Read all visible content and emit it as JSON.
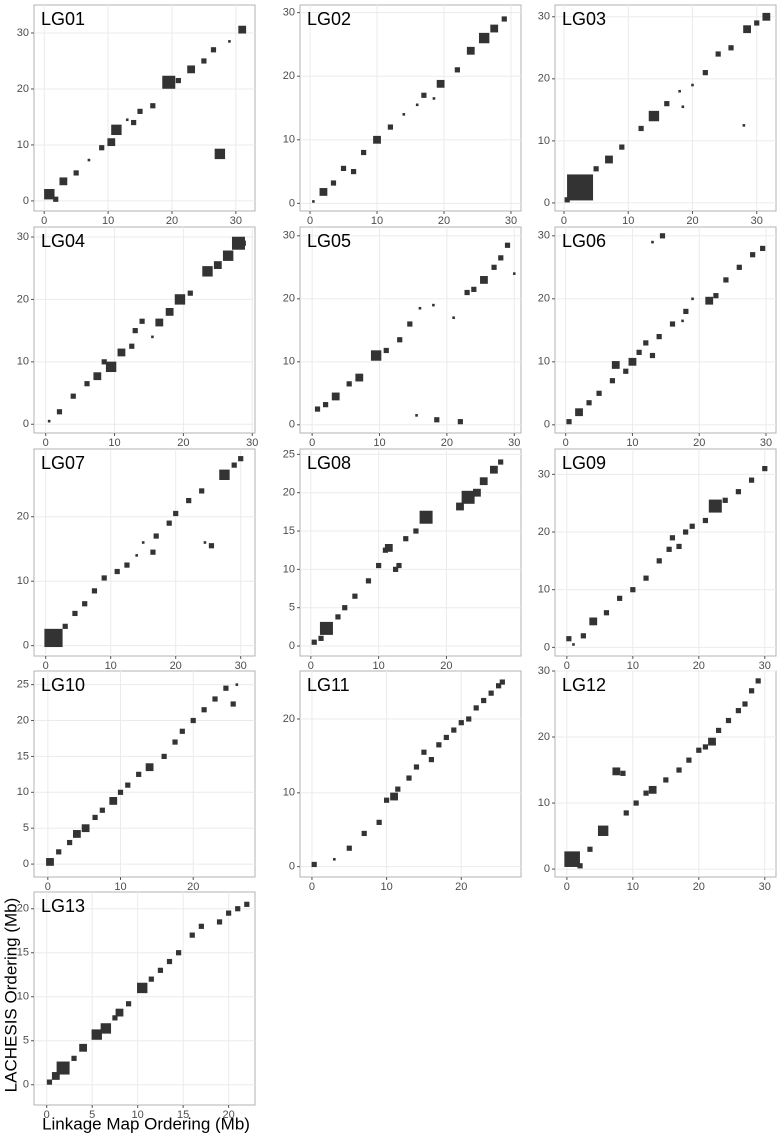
{
  "axis_labels": {
    "x": "Linkage Map Ordering (Mb)",
    "y": "LACHESIS Ordering (Mb)"
  },
  "chart_data": [
    {
      "type": "scatter",
      "title": "LG01",
      "color": "#333333",
      "grid": true,
      "xlim": [
        -1.6,
        33
      ],
      "ylim": [
        -1.8,
        35
      ],
      "xticks": [
        0,
        10,
        20,
        30
      ],
      "yticks": [
        0,
        10,
        20,
        30
      ],
      "x": [
        0.8,
        1.8,
        3,
        5,
        7,
        9,
        10.5,
        11.3,
        13,
        14,
        15,
        17,
        19.5,
        21,
        23,
        25,
        26.5,
        27.5,
        29,
        31
      ],
      "values": [
        1.2,
        0.3,
        3.5,
        5,
        7.3,
        9.5,
        10.5,
        12.7,
        14.5,
        14,
        16,
        17,
        21.2,
        21.5,
        23.5,
        25,
        27,
        8.4,
        28.5,
        30.6
      ],
      "sizes": [
        4,
        2,
        3,
        2,
        1,
        2,
        3,
        4,
        1,
        2,
        2,
        2,
        5,
        2,
        3,
        2,
        2,
        4,
        1,
        3
      ]
    },
    {
      "type": "scatter",
      "title": "LG02",
      "color": "#333333",
      "grid": true,
      "xlim": [
        -1.5,
        31.5
      ],
      "ylim": [
        -1.2,
        31.2
      ],
      "xticks": [
        0,
        10,
        20,
        30
      ],
      "yticks": [
        0,
        10,
        20,
        30
      ],
      "x": [
        0.5,
        2,
        3.5,
        5,
        6.5,
        8,
        10,
        12,
        14,
        16,
        17,
        18.5,
        19.5,
        22,
        24,
        26,
        27.5,
        29
      ],
      "values": [
        0.3,
        1.8,
        3.2,
        5.5,
        5,
        8,
        10,
        12,
        14,
        15.5,
        17,
        16.5,
        18.8,
        21,
        24,
        26,
        27.5,
        29
      ],
      "sizes": [
        1,
        3,
        2,
        2,
        2,
        2,
        3,
        2,
        1,
        1,
        2,
        1,
        3,
        2,
        3,
        4,
        3,
        2
      ]
    },
    {
      "type": "scatter",
      "title": "LG03",
      "color": "#333333",
      "grid": true,
      "xlim": [
        -1.4,
        33
      ],
      "ylim": [
        -1.3,
        31.9
      ],
      "xticks": [
        0,
        10,
        20,
        30
      ],
      "yticks": [
        0,
        10,
        20,
        30
      ],
      "x": [
        0.5,
        2.5,
        5,
        7,
        9,
        12,
        14,
        16,
        18,
        18.5,
        20,
        22,
        24,
        26,
        28,
        28.5,
        30,
        31.5
      ],
      "values": [
        0.5,
        2.5,
        5.5,
        7,
        9,
        12,
        14,
        16,
        18,
        15.5,
        19,
        21,
        24,
        25,
        12.5,
        28,
        29,
        30
      ],
      "sizes": [
        2,
        10,
        2,
        3,
        2,
        2,
        4,
        2,
        1,
        1,
        1,
        2,
        2,
        2,
        1,
        3,
        2,
        3
      ]
    },
    {
      "type": "scatter",
      "title": "LG04",
      "color": "#333333",
      "grid": true,
      "xlim": [
        -1.7,
        30.4
      ],
      "ylim": [
        -1.4,
        31.6
      ],
      "xticks": [
        0,
        10,
        20,
        30
      ],
      "yticks": [
        0,
        10,
        20,
        30
      ],
      "x": [
        0.5,
        2,
        4,
        6,
        7.5,
        8.5,
        9.5,
        11,
        12.5,
        13,
        14,
        15.5,
        16.5,
        18,
        19.5,
        21,
        23.5,
        25,
        26.5,
        28,
        28.7
      ],
      "values": [
        0.5,
        2,
        4.5,
        6.5,
        7.7,
        10,
        9.2,
        11.5,
        12.5,
        15,
        16.5,
        14,
        16.3,
        18,
        20,
        21,
        24.5,
        25.5,
        27,
        29,
        29
      ],
      "sizes": [
        1,
        2,
        2,
        2,
        3,
        2,
        4,
        3,
        2,
        2,
        2,
        1,
        3,
        3,
        4,
        2,
        4,
        3,
        4,
        5,
        2
      ]
    },
    {
      "type": "scatter",
      "title": "LG05",
      "color": "#333333",
      "grid": true,
      "xlim": [
        -1.8,
        31
      ],
      "ylim": [
        -1.3,
        31.4
      ],
      "xticks": [
        0,
        10,
        20,
        30
      ],
      "yticks": [
        0,
        10,
        20,
        30
      ],
      "x": [
        0.8,
        2,
        3.5,
        5.5,
        7,
        9.5,
        11,
        13,
        14.5,
        16,
        18,
        15.5,
        18.5,
        22,
        21,
        23,
        24,
        25.5,
        27,
        28,
        29,
        30
      ],
      "values": [
        2.5,
        3.2,
        4.5,
        6.5,
        7.5,
        11,
        11.8,
        13.5,
        16,
        18.5,
        19,
        1.5,
        0.8,
        0.5,
        17,
        21,
        21.5,
        23,
        25,
        26.5,
        28.5,
        24
      ],
      "sizes": [
        2,
        2,
        3,
        2,
        3,
        4,
        2,
        2,
        2,
        1,
        1,
        1,
        2,
        2,
        1,
        2,
        2,
        3,
        2,
        2,
        2,
        1
      ]
    },
    {
      "type": "scatter",
      "title": "LG06",
      "color": "#333333",
      "grid": true,
      "xlim": [
        -1.6,
        31.5
      ],
      "ylim": [
        -1.3,
        31.4
      ],
      "xticks": [
        0,
        10,
        20,
        30
      ],
      "yticks": [
        0,
        10,
        20,
        30
      ],
      "x": [
        0.5,
        2,
        3.5,
        5,
        7,
        7.5,
        9,
        10,
        11,
        12,
        13,
        14,
        16,
        17.5,
        18,
        19,
        14.5,
        13,
        21.5,
        22.5,
        24,
        26,
        28,
        29.5
      ],
      "values": [
        0.5,
        2,
        3.5,
        5,
        7,
        9.5,
        8.5,
        10,
        11.5,
        13,
        11,
        14,
        16,
        16.5,
        18,
        20,
        30,
        29,
        19.7,
        20.5,
        23,
        25,
        27,
        28
      ],
      "sizes": [
        2,
        3,
        2,
        2,
        2,
        3,
        2,
        3,
        2,
        2,
        2,
        2,
        2,
        1,
        2,
        1,
        2,
        1,
        3,
        2,
        2,
        2,
        2,
        2
      ]
    },
    {
      "type": "scatter",
      "title": "LG07",
      "color": "#333333",
      "grid": true,
      "xlim": [
        -1.8,
        32.2
      ],
      "ylim": [
        -1.6,
        30.5
      ],
      "xticks": [
        0,
        10,
        20,
        30
      ],
      "yticks": [
        0,
        10,
        20
      ],
      "x": [
        1.2,
        3,
        4.5,
        6,
        7.5,
        9,
        11,
        12.5,
        14,
        15,
        16.5,
        17,
        19,
        20,
        22,
        24,
        24.5,
        25.5,
        27.5,
        29,
        30
      ],
      "values": [
        1.2,
        3,
        5,
        6.5,
        8.5,
        10.5,
        11.5,
        12.5,
        14,
        16,
        14.5,
        17,
        19,
        20.5,
        22.5,
        24,
        16,
        15.5,
        26.5,
        28,
        29
      ],
      "sizes": [
        7,
        2,
        2,
        2,
        2,
        2,
        2,
        2,
        1,
        1,
        2,
        2,
        2,
        2,
        2,
        2,
        1,
        2,
        4,
        2,
        2
      ]
    },
    {
      "type": "scatter",
      "title": "LG08",
      "color": "#333333",
      "grid": true,
      "xlim": [
        -1.6,
        31
      ],
      "ylim": [
        -1.3,
        25.7
      ],
      "xticks": [
        0,
        10,
        20
      ],
      "yticks": [
        0,
        5,
        10,
        15,
        20,
        25
      ],
      "x": [
        0.5,
        1.5,
        2.3,
        4,
        5,
        6.5,
        8.5,
        10,
        11,
        11.5,
        12.5,
        13,
        14,
        15.5,
        17,
        22,
        23.2,
        24.5,
        25.5,
        27,
        28
      ],
      "values": [
        0.5,
        1,
        2.3,
        3.8,
        5,
        6.5,
        8.5,
        10.5,
        12.5,
        12.8,
        10,
        10.5,
        14,
        15,
        16.8,
        18.2,
        19.4,
        20,
        21.5,
        23,
        24
      ],
      "sizes": [
        2,
        2,
        5,
        2,
        2,
        2,
        2,
        2,
        2,
        3,
        2,
        2,
        2,
        2,
        5,
        3,
        5,
        3,
        3,
        3,
        2
      ]
    },
    {
      "type": "scatter",
      "title": "LG09",
      "color": "#333333",
      "grid": true,
      "xlim": [
        -1.8,
        31.7
      ],
      "ylim": [
        -1.5,
        34.4
      ],
      "xticks": [
        0,
        10,
        20,
        30
      ],
      "yticks": [
        0,
        10,
        20,
        30
      ],
      "x": [
        0.3,
        1,
        2.5,
        4,
        6,
        8,
        10,
        12,
        14,
        15.5,
        16,
        17,
        18,
        19,
        21,
        22.5,
        24,
        26,
        28,
        30
      ],
      "values": [
        1.5,
        0.5,
        2,
        4.5,
        6,
        8.5,
        10,
        12,
        15,
        17,
        19,
        17.5,
        20,
        21,
        22,
        24.5,
        25.5,
        27,
        29,
        31
      ],
      "sizes": [
        2,
        1,
        2,
        3,
        2,
        2,
        2,
        2,
        2,
        2,
        2,
        2,
        2,
        2,
        2,
        5,
        2,
        2,
        2,
        2
      ]
    },
    {
      "type": "scatter",
      "title": "LG10",
      "color": "#333333",
      "grid": true,
      "xlim": [
        -1.9,
        28.5
      ],
      "ylim": [
        -1.8,
        26.9
      ],
      "xticks": [
        0,
        10,
        20
      ],
      "yticks": [
        0,
        5,
        10,
        15,
        20,
        25
      ],
      "x": [
        0.3,
        1.5,
        3,
        4,
        5.2,
        6.5,
        7.5,
        9,
        10,
        11,
        12.5,
        14,
        16,
        17.5,
        18.5,
        20,
        21.5,
        23,
        24.5,
        25.5,
        26
      ],
      "values": [
        0.3,
        1.7,
        3,
        4.2,
        5,
        6.5,
        7.5,
        8.8,
        10,
        11,
        12.5,
        13.5,
        15,
        17,
        18.5,
        20,
        21.5,
        23,
        24.5,
        22.3,
        25
      ],
      "sizes": [
        3,
        2,
        2,
        3,
        3,
        2,
        2,
        3,
        2,
        2,
        2,
        3,
        2,
        2,
        2,
        2,
        2,
        2,
        2,
        2,
        1
      ]
    },
    {
      "type": "scatter",
      "title": "LG11",
      "color": "#333333",
      "grid": true,
      "xlim": [
        -1.6,
        28
      ],
      "ylim": [
        -1.4,
        26.5
      ],
      "xticks": [
        0,
        10,
        20
      ],
      "yticks": [
        0,
        10,
        20
      ],
      "x": [
        0.3,
        3,
        5,
        7,
        9,
        10,
        11,
        11.5,
        13,
        14,
        15,
        16,
        17,
        18,
        19,
        20,
        21,
        22,
        23,
        24,
        25,
        25.5
      ],
      "values": [
        0.3,
        1,
        2.5,
        4.5,
        6,
        9,
        9.5,
        10.5,
        12,
        13.5,
        15.5,
        14.5,
        16.5,
        17.5,
        18.5,
        19.5,
        20,
        21.5,
        22.5,
        23.5,
        24.5,
        25
      ],
      "sizes": [
        2,
        1,
        2,
        2,
        2,
        2,
        3,
        2,
        2,
        2,
        2,
        2,
        2,
        2,
        2,
        2,
        2,
        2,
        2,
        2,
        2,
        2
      ]
    },
    {
      "type": "scatter",
      "title": "LG12",
      "color": "#333333",
      "grid": true,
      "xlim": [
        -1.8,
        31.7
      ],
      "ylim": [
        -1.2,
        30
      ],
      "xticks": [
        0,
        10,
        20,
        30
      ],
      "yticks": [
        0,
        10,
        20,
        30
      ],
      "x": [
        0.8,
        2,
        3.5,
        5.5,
        7.5,
        8.5,
        9,
        10.5,
        12,
        13,
        15,
        17,
        18.5,
        20,
        21,
        22,
        23,
        24.5,
        26,
        27,
        28,
        29
      ],
      "values": [
        1.5,
        0.5,
        3,
        5.8,
        14.8,
        14.5,
        8.5,
        10,
        11.5,
        12,
        13.5,
        15,
        16.5,
        18,
        18.5,
        19.3,
        21,
        22.5,
        24,
        25,
        27,
        28.5
      ],
      "sizes": [
        6,
        2,
        2,
        4,
        3,
        2,
        2,
        2,
        2,
        3,
        2,
        2,
        2,
        2,
        2,
        3,
        2,
        2,
        2,
        2,
        2,
        2
      ]
    },
    {
      "type": "scatter",
      "title": "LG13",
      "color": "#333333",
      "grid": true,
      "xlim": [
        -1.4,
        22.9
      ],
      "ylim": [
        -2.3,
        21.9
      ],
      "xticks": [
        0,
        5,
        10,
        15,
        20
      ],
      "yticks": [
        0,
        5,
        10,
        15,
        20
      ],
      "x": [
        0.3,
        1,
        1.8,
        3,
        4,
        5.5,
        6.5,
        7.5,
        8,
        9,
        10.5,
        11.5,
        12.5,
        13.5,
        14.5,
        16,
        17,
        19,
        20,
        21,
        22
      ],
      "values": [
        0.3,
        1,
        1.9,
        3,
        4.2,
        5.7,
        6.4,
        7.6,
        8.2,
        9.2,
        11,
        12,
        13,
        14,
        15,
        17,
        18,
        18.5,
        19.5,
        20,
        20.5
      ],
      "sizes": [
        2,
        3,
        5,
        2,
        3,
        4,
        4,
        2,
        3,
        2,
        4,
        2,
        2,
        2,
        2,
        2,
        2,
        2,
        2,
        2,
        2
      ]
    }
  ]
}
